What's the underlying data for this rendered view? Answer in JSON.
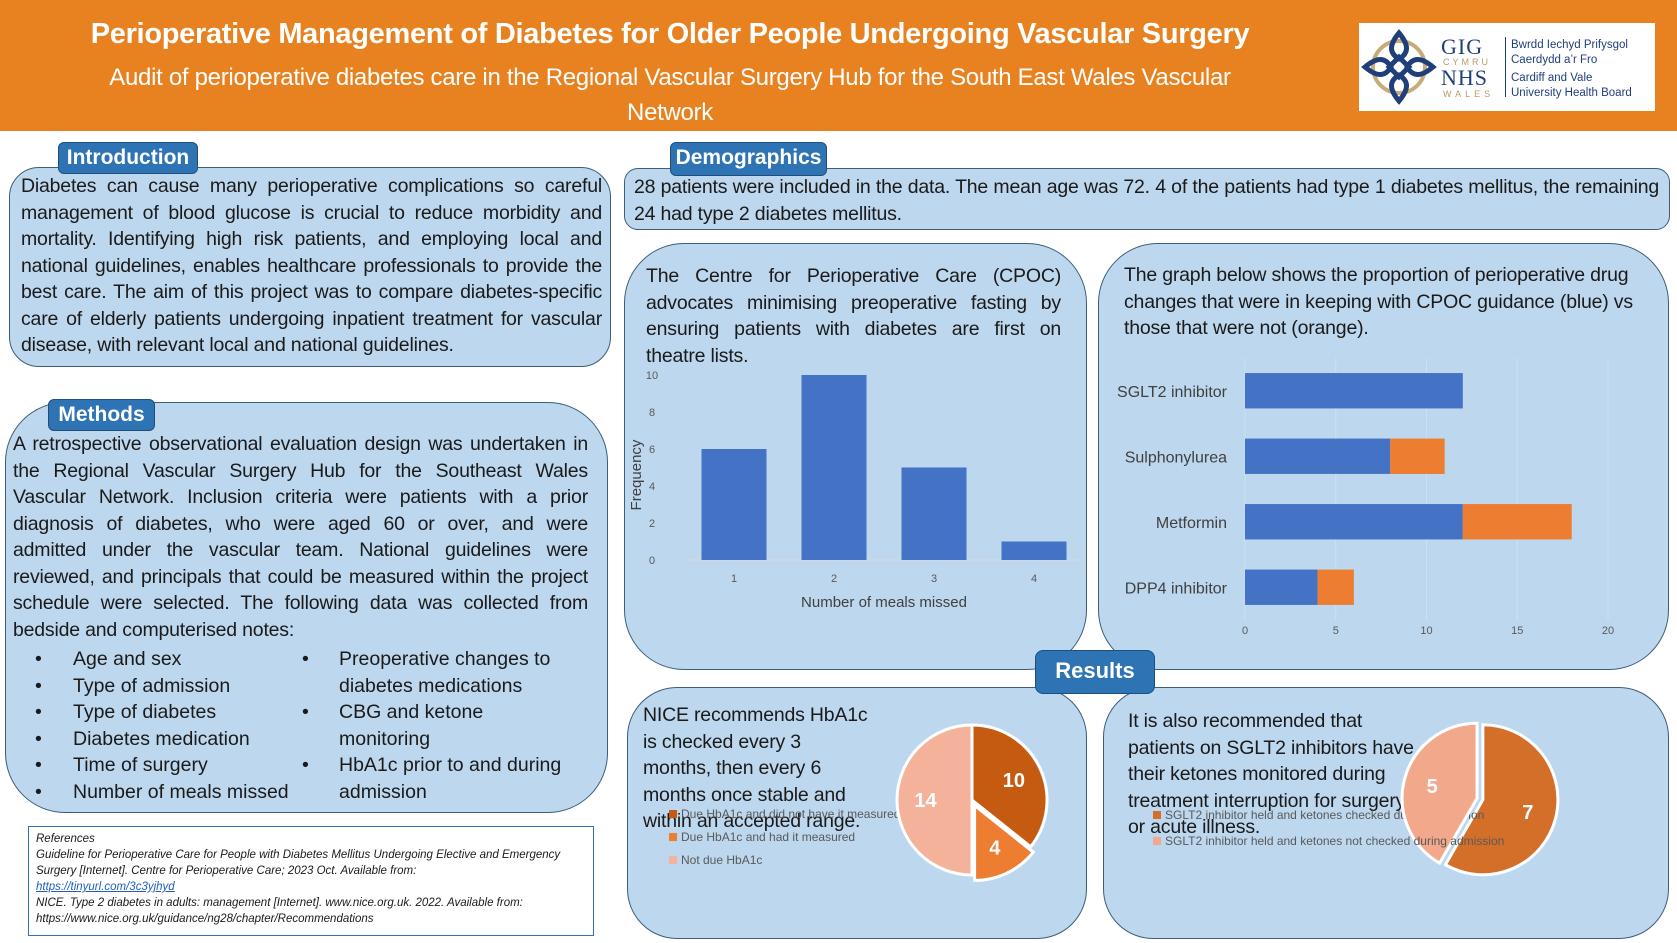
{
  "header": {
    "title": "Perioperative Management of Diabetes for Older People Undergoing Vascular Surgery",
    "subtitle_line1": "Audit of perioperative diabetes care in the Regional Vascular Surgery Hub for the South East Wales Vascular",
    "subtitle_line2": "Network",
    "logo": {
      "icon": "celtic-knot-icon",
      "gig": "GIG",
      "cymru": "CYMRU",
      "nhs": "NHS",
      "wales": "WALES",
      "org_welsh_1": "Bwrdd Iechyd Prifysgol",
      "org_welsh_2": "Caerdydd a’r Fro",
      "org_english_1": "Cardiff and Vale",
      "org_english_2": "University Health Board"
    },
    "colors": {
      "banner": "#e8811f",
      "tab": "#2e74b5",
      "panel": "#bdd7ee"
    }
  },
  "introduction": {
    "heading": "Introduction",
    "text": "Diabetes can cause many perioperative complications so careful management of blood glucose is crucial to reduce morbidity and mortality. Identifying high risk patients, and employing local and national guidelines, enables healthcare professionals to provide the best care. The aim of this project was to compare diabetes-specific care of elderly patients undergoing inpatient treatment for vascular disease, with relevant local and national guidelines."
  },
  "methods": {
    "heading": "Methods",
    "text": "A retrospective observational evaluation design was undertaken in the  Regional Vascular Surgery Hub for the Southeast Wales Vascular Network. Inclusion criteria were patients with a prior diagnosis of diabetes, who were aged 60 or over, and were admitted under the vascular team. National guidelines were reviewed, and principals that could be measured within the project schedule were selected. The following data was collected from bedside and computerised notes:",
    "list_left": [
      "Age and sex",
      "Type of admission",
      "Type of diabetes",
      "Diabetes medication",
      "Time of surgery",
      "Number of meals missed"
    ],
    "list_right": [
      {
        "text": "Preoperative changes to",
        "bullet": true
      },
      {
        "text": "diabetes medications",
        "bullet": false
      },
      {
        "text": "CBG and ketone",
        "bullet": true
      },
      {
        "text": "monitoring",
        "bullet": false
      },
      {
        "text": "HbA1c prior to and during",
        "bullet": true
      },
      {
        "text": "admission",
        "bullet": false
      }
    ]
  },
  "references": {
    "heading": "References",
    "ref1": "Guideline for Perioperative Care for People with Diabetes Mellitus Undergoing Elective and Emergency Surgery [Internet]. Centre for Perioperative Care; 2023 Oct. Available from:",
    "ref1_link": "https://tinyurl.com/3c3yjhyd",
    "ref2": "NICE. Type 2 diabetes in adults: management [Internet]. www.nice.org.uk. 2022. Available from: https://www.nice.org.uk/guidance/ng28/chapter/Recommendations"
  },
  "demographics": {
    "heading": "Demographics",
    "text": "28 patients were included in the data. The mean age was 72. 4 of the patients had type 1 diabetes mellitus, the remaining 24 had type 2 diabetes mellitus."
  },
  "fasting_panel": {
    "text": "The Centre for Perioperative Care (CPOC) advocates minimising preoperative fasting by ensuring patients with diabetes are first on theatre lists."
  },
  "drug_panel": {
    "text": "The graph below shows the proportion of perioperative drug changes that were in keeping with CPOC guidance (blue) vs those that were not (orange)."
  },
  "results": {
    "heading": "Results"
  },
  "hba1c_panel": {
    "text": "NICE recommends HbA1c is checked every 3 months, then every 6 months once stable and within an accepted range."
  },
  "sglt2_panel": {
    "text": "It is also recommended that patients on SGLT2 inhibitors have their ketones monitored during treatment interruption for surgery or acute illness."
  },
  "chart_data": [
    {
      "type": "bar",
      "title": "",
      "xlabel": "Number of meals missed",
      "ylabel": "Frequency",
      "categories": [
        "1",
        "2",
        "3",
        "4"
      ],
      "values": [
        6,
        10,
        5,
        1
      ],
      "ylim": [
        0,
        10
      ],
      "yticks": [
        "0",
        "2",
        "4",
        "6",
        "8",
        "10"
      ],
      "color": "#4472c4",
      "grid": false
    },
    {
      "type": "bar",
      "orientation": "horizontal-stacked",
      "title": "",
      "categories": [
        "SGLT2 inhibitor",
        "Sulphonylurea",
        "Metformin",
        "DPP4 inhibitor"
      ],
      "series": [
        {
          "name": "In keeping with CPOC guidance",
          "color": "#4472c4",
          "values": [
            12,
            8,
            12,
            4
          ]
        },
        {
          "name": "Not in keeping with CPOC guidance",
          "color": "#ed7d31",
          "values": [
            0,
            3,
            6,
            2
          ]
        }
      ],
      "xlim": [
        0,
        20
      ],
      "xticks": [
        "0",
        "5",
        "10",
        "15",
        "20"
      ],
      "grid": true
    },
    {
      "type": "pie",
      "title": "",
      "slices": [
        {
          "label": "Due HbA1c and did not have it measured",
          "value": 10,
          "color": "#c55a11"
        },
        {
          "label": "Due HbA1c and had it measured",
          "value": 4,
          "color": "#ed7d31"
        },
        {
          "label": "Not due HbA1c",
          "value": 14,
          "color": "#f4b29b"
        }
      ],
      "legend": "bottom"
    },
    {
      "type": "pie",
      "title": "",
      "slices": [
        {
          "label": "SGLT2 inhibitor held and ketones checked during admission",
          "value": 7,
          "color": "#d46f2a"
        },
        {
          "label": "SGLT2 inhibitor held and ketones not checked during admission",
          "value": 5,
          "color": "#f2a88a"
        }
      ],
      "legend": "bottom"
    }
  ]
}
